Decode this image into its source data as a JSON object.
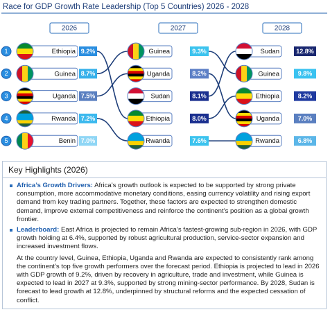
{
  "chart_data": {
    "type": "bump",
    "title": "Race for GDP Growth Rate Leadership (Top 5 Countries) 2026 - 2028",
    "ranks": [
      1,
      2,
      3,
      4,
      5
    ],
    "columns": [
      {
        "label": "2026",
        "names": [
          "Ethiopia",
          "Guinea",
          "Uganda",
          "Rwanda",
          "Benin"
        ],
        "values": [
          9.2,
          8.7,
          7.5,
          7.2,
          7.0
        ],
        "value_labels": [
          "9.2%",
          "8.7%",
          "7.5%",
          "7.2%",
          "7.0%"
        ],
        "colors": [
          "#2a8ee0",
          "#36b0ea",
          "#5a7fc0",
          "#3cb9ee",
          "#8fd6f5"
        ],
        "flags": [
          {
            "dir": "h",
            "colors": [
              "#078930",
              "#fcdd09",
              "#da121a"
            ]
          },
          {
            "dir": "v",
            "colors": [
              "#ce1126",
              "#fcd116",
              "#009460"
            ]
          },
          {
            "dir": "h",
            "colors": [
              "#000000",
              "#fcdc04",
              "#d90000",
              "#000000",
              "#fcdc04",
              "#d90000"
            ]
          },
          {
            "dir": "h",
            "colors": [
              "#20603d",
              "#00a1de",
              "#00a1de",
              "#fad201",
              "#20603d"
            ]
          },
          {
            "dir": "v",
            "colors": [
              "#008751",
              "#fcd116",
              "#e8112d"
            ]
          }
        ]
      },
      {
        "label": "2027",
        "names": [
          "Guinea",
          "Uganda",
          "Sudan",
          "Ethiopia",
          "Rwanda"
        ],
        "values": [
          9.3,
          8.2,
          8.1,
          8.0,
          7.6
        ],
        "value_labels": [
          "9.3%",
          "8.2%",
          "8.1%",
          "8.0%",
          "7.6%"
        ],
        "colors": [
          "#3cc3ee",
          "#5c7fc6",
          "#1a2f8f",
          "#1a2f8f",
          "#3cc3ee"
        ],
        "flags": [
          {
            "dir": "v",
            "colors": [
              "#ce1126",
              "#fcd116",
              "#009460"
            ]
          },
          {
            "dir": "h",
            "colors": [
              "#000000",
              "#fcdc04",
              "#d90000",
              "#000000",
              "#fcdc04",
              "#d90000"
            ]
          },
          {
            "dir": "h",
            "colors": [
              "#d21034",
              "#ffffff",
              "#000000"
            ]
          },
          {
            "dir": "h",
            "colors": [
              "#078930",
              "#fcdd09",
              "#da121a"
            ]
          },
          {
            "dir": "h",
            "colors": [
              "#00a1de",
              "#00a1de",
              "#fad201",
              "#20603d"
            ]
          }
        ]
      },
      {
        "label": "2028",
        "names": [
          "Sudan",
          "Guinea",
          "Ethiopia",
          "Uganda",
          "Rwanda"
        ],
        "values": [
          12.8,
          9.8,
          8.2,
          7.0,
          6.8
        ],
        "value_labels": [
          "12.8%",
          "9.8%",
          "8.2%",
          "7.0%",
          "6.8%"
        ],
        "colors": [
          "#1a2870",
          "#3ac2f0",
          "#1f3aa0",
          "#5a7fc0",
          "#5bb6e8"
        ],
        "flags": [
          {
            "dir": "h",
            "colors": [
              "#d21034",
              "#ffffff",
              "#000000"
            ]
          },
          {
            "dir": "v",
            "colors": [
              "#ce1126",
              "#fcd116",
              "#009460"
            ]
          },
          {
            "dir": "h",
            "colors": [
              "#078930",
              "#fcdd09",
              "#da121a"
            ]
          },
          {
            "dir": "h",
            "colors": [
              "#000000",
              "#fcdc04",
              "#d90000",
              "#000000",
              "#fcdc04",
              "#d90000"
            ]
          },
          {
            "dir": "h",
            "colors": [
              "#00a1de",
              "#00a1de",
              "#fad201",
              "#20603d"
            ]
          }
        ]
      }
    ]
  },
  "highlights": {
    "title": "Key Highlights (2026)",
    "items": [
      {
        "lead": "Africa’s Growth Drivers:",
        "text": " Africa’s growth outlook is expected to be supported by strong private consumption, more accommodative monetary conditions, easing currency volatility and rising export demand from key trading partners. Together, these factors are expected to strengthen domestic demand, improve external competitiveness and reinforce the continent’s position as a global growth frontier."
      },
      {
        "lead": "Leaderboard:",
        "text": " East Africa is projected to remain Africa’s fastest-growing sub-region in 2026, with GDP growth holding at 6.4%, supported by robust agricultural production, service-sector expansion and increased investment flows."
      }
    ],
    "paragraph": "At the country level, Guinea, Ethiopia, Uganda and Rwanda are expected to consistently rank among the continent’s top five growth performers over the forecast period. Ethiopia is projected to lead in 2026 with GDP growth of 9.2%, driven by recovery in agriculture, trade and investment, while Guinea is expected to lead in 2027 at 9.3%, supported by strong mining-sector performance. By 2028, Sudan is forecast to lead growth at 12.8%, underpinned by structural reforms and the expected cessation of conflict."
  }
}
